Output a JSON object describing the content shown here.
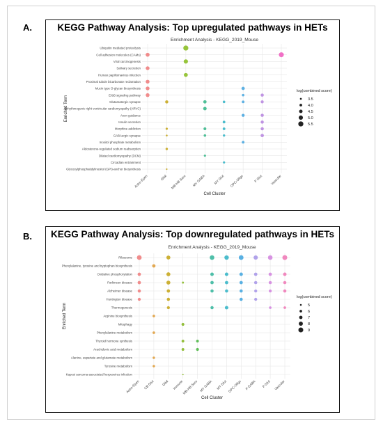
{
  "chart_data": [
    {
      "type": "scatter",
      "panel_label": "A.",
      "title": "KEGG Pathway Analysis: Top upregulated pathways in HETs",
      "subtitle": "Enrichment Analysis - KEGG_2019_Mouse",
      "xlabel": "Cell Cluster",
      "ylabel": "Enriched Term",
      "legend_title": "log(combined score)",
      "legend_values": [
        3.5,
        4.0,
        4.5,
        5.0,
        5.5
      ],
      "size_range": [
        3.2,
        5.8
      ],
      "grid": true,
      "legend_position": "right",
      "categories_x": [
        "Astro-Epen",
        "Glial",
        "MB-HB Sero",
        "MY GABA",
        "MY Glut",
        "OPC-Oligo",
        "P Glut",
        "Vascular"
      ],
      "colors": [
        "#f08080",
        "#c8a820",
        "#8cbf26",
        "#3cb88c",
        "#38b6c8",
        "#4ca9e0",
        "#b98ae0",
        "#f060c0"
      ],
      "categories_y": [
        "Ubiquitin mediated proteolysis",
        "Cell adhesion molecules (CAMs)",
        "Viral carcinogenesis",
        "Salivary secretion",
        "Human papillomavirus infection",
        "Proximal tubule bicarbonate reclamation",
        "Mucin type O-glycan biosynthesis",
        "ErbB signaling pathway",
        "Glutamatergic synapse",
        "Arrhythmogenic right ventricular cardiomyopathy (ARVC)",
        "Axon guidance",
        "Insulin secretion",
        "Morphine addiction",
        "GABAergic synapse",
        "Inositol phosphate metabolism",
        "Aldosterone-regulated sodium reabsorption",
        "Dilated cardiomyopathy (DCM)",
        "Circadian entrainment",
        "Glycosylphosphatidylinositol (GPI)-anchor biosynthesis"
      ],
      "points": [
        {
          "x": "MB-HB Sero",
          "y": "Ubiquitin mediated proteolysis",
          "size": 5.5
        },
        {
          "x": "Vascular",
          "y": "Cell adhesion molecules (CAMs)",
          "size": 5.4
        },
        {
          "x": "Astro-Epen",
          "y": "Cell adhesion molecules (CAMs)",
          "size": 4.8
        },
        {
          "x": "MB-HB Sero",
          "y": "Viral carcinogenesis",
          "size": 5.0
        },
        {
          "x": "Astro-Epen",
          "y": "Salivary secretion",
          "size": 4.7
        },
        {
          "x": "MB-HB Sero",
          "y": "Human papillomavirus infection",
          "size": 4.8
        },
        {
          "x": "Astro-Epen",
          "y": "Proximal tubule bicarbonate reclamation",
          "size": 4.7
        },
        {
          "x": "Astro-Epen",
          "y": "Mucin type O-glycan biosynthesis",
          "size": 4.7
        },
        {
          "x": "OPC-Oligo",
          "y": "Mucin type O-glycan biosynthesis",
          "size": 4.4
        },
        {
          "x": "Astro-Epen",
          "y": "ErbB signaling pathway",
          "size": 4.7
        },
        {
          "x": "OPC-Oligo",
          "y": "ErbB signaling pathway",
          "size": 3.9
        },
        {
          "x": "P Glut",
          "y": "ErbB signaling pathway",
          "size": 4.3
        },
        {
          "x": "Glial",
          "y": "Glutamatergic synapse",
          "size": 4.3
        },
        {
          "x": "MY GABA",
          "y": "Glutamatergic synapse",
          "size": 4.4
        },
        {
          "x": "MY Glut",
          "y": "Glutamatergic synapse",
          "size": 3.9
        },
        {
          "x": "OPC-Oligo",
          "y": "Glutamatergic synapse",
          "size": 4.0
        },
        {
          "x": "P Glut",
          "y": "Glutamatergic synapse",
          "size": 4.2
        },
        {
          "x": "MY GABA",
          "y": "Arrhythmogenic right ventricular cardiomyopathy (ARVC)",
          "size": 4.5
        },
        {
          "x": "OPC-Oligo",
          "y": "Axon guidance",
          "size": 4.2
        },
        {
          "x": "P Glut",
          "y": "Axon guidance",
          "size": 4.3
        },
        {
          "x": "MY Glut",
          "y": "Insulin secretion",
          "size": 4.0
        },
        {
          "x": "P Glut",
          "y": "Insulin secretion",
          "size": 4.3
        },
        {
          "x": "Glial",
          "y": "Morphine addiction",
          "size": 3.7
        },
        {
          "x": "MY GABA",
          "y": "Morphine addiction",
          "size": 4.1
        },
        {
          "x": "MY Glut",
          "y": "Morphine addiction",
          "size": 4.0
        },
        {
          "x": "P Glut",
          "y": "Morphine addiction",
          "size": 4.3
        },
        {
          "x": "Glial",
          "y": "GABAergic synapse",
          "size": 3.5
        },
        {
          "x": "MY GABA",
          "y": "GABAergic synapse",
          "size": 3.9
        },
        {
          "x": "MY Glut",
          "y": "GABAergic synapse",
          "size": 3.8
        },
        {
          "x": "P Glut",
          "y": "GABAergic synapse",
          "size": 4.4
        },
        {
          "x": "OPC-Oligo",
          "y": "Inositol phosphate metabolism",
          "size": 4.0
        },
        {
          "x": "Glial",
          "y": "Aldosterone-regulated sodium reabsorption",
          "size": 3.8
        },
        {
          "x": "MY GABA",
          "y": "Dilated cardiomyopathy (DCM)",
          "size": 3.7
        },
        {
          "x": "MY Glut",
          "y": "Circadian entrainment",
          "size": 3.7
        },
        {
          "x": "Glial",
          "y": "Glycosylphosphatidylinositol (GPI)-anchor biosynthesis",
          "size": 3.3
        }
      ]
    },
    {
      "type": "scatter",
      "panel_label": "B.",
      "title": "KEGG Pathway Analysis: Top downregulated pathways in HETs",
      "subtitle": "Enrichment Analysis - KEGG_2019_Mouse",
      "xlabel": "Cell Cluster",
      "ylabel": "Enriched Term",
      "legend_title": "log(combined score)",
      "legend_values": [
        5,
        6,
        7,
        8,
        9
      ],
      "size_range": [
        4.5,
        9.5
      ],
      "grid": true,
      "legend_position": "right",
      "categories_x": [
        "Astro-Epen",
        "CB Glut",
        "Glial",
        "Immune",
        "MB-HB Sero",
        "MY GABA",
        "MY Glut",
        "OPC-Oligo",
        "P GABA",
        "P Glut",
        "Vascular"
      ],
      "colors": [
        "#f08080",
        "#e0a040",
        "#c8a820",
        "#88b828",
        "#50b848",
        "#3cb8a0",
        "#38b6c8",
        "#48a8e0",
        "#a898e8",
        "#d488e0",
        "#f07cb8"
      ],
      "categories_y": [
        "Ribosome",
        "Phenylalanine, tyrosine and tryptophan biosynthesis",
        "Oxidative phosphorylation",
        "Parkinson disease",
        "Alzheimer disease",
        "Huntington disease",
        "Thermogenesis",
        "Arginine biosynthesis",
        "Mitophagy",
        "Phenylalanine metabolism",
        "Thyroid hormone synthesis",
        "Arachidonic acid metabolism",
        "Alanine, aspartate and glutamate metabolism",
        "Tyrosine metabolism",
        "Kaposi sarcoma-associated herpesvirus infection"
      ],
      "points": [
        {
          "x": "Astro-Epen",
          "y": "Ribosome",
          "size": 8.8
        },
        {
          "x": "Glial",
          "y": "Ribosome",
          "size": 7.8
        },
        {
          "x": "MY GABA",
          "y": "Ribosome",
          "size": 8.6
        },
        {
          "x": "MY Glut",
          "y": "Ribosome",
          "size": 8.4
        },
        {
          "x": "OPC-Oligo",
          "y": "Ribosome",
          "size": 8.8
        },
        {
          "x": "P GABA",
          "y": "Ribosome",
          "size": 8.2
        },
        {
          "x": "P Glut",
          "y": "Ribosome",
          "size": 8.6
        },
        {
          "x": "Vascular",
          "y": "Ribosome",
          "size": 9.0
        },
        {
          "x": "CB Glut",
          "y": "Phenylalanine, tyrosine and tryptophan biosynthesis",
          "size": 7.0
        },
        {
          "x": "Astro-Epen",
          "y": "Oxidative phosphorylation",
          "size": 7.0
        },
        {
          "x": "Glial",
          "y": "Oxidative phosphorylation",
          "size": 7.8
        },
        {
          "x": "MY GABA",
          "y": "Oxidative phosphorylation",
          "size": 7.2
        },
        {
          "x": "MY Glut",
          "y": "Oxidative phosphorylation",
          "size": 7.2
        },
        {
          "x": "OPC-Oligo",
          "y": "Oxidative phosphorylation",
          "size": 7.2
        },
        {
          "x": "P GABA",
          "y": "Oxidative phosphorylation",
          "size": 7.0
        },
        {
          "x": "P Glut",
          "y": "Oxidative phosphorylation",
          "size": 7.0
        },
        {
          "x": "Vascular",
          "y": "Oxidative phosphorylation",
          "size": 7.2
        },
        {
          "x": "Astro-Epen",
          "y": "Parkinson disease",
          "size": 7.0
        },
        {
          "x": "Glial",
          "y": "Parkinson disease",
          "size": 7.8
        },
        {
          "x": "Immune",
          "y": "Parkinson disease",
          "size": 5.3
        },
        {
          "x": "MY GABA",
          "y": "Parkinson disease",
          "size": 7.0
        },
        {
          "x": "MY Glut",
          "y": "Parkinson disease",
          "size": 7.0
        },
        {
          "x": "OPC-Oligo",
          "y": "Parkinson disease",
          "size": 7.0
        },
        {
          "x": "P GABA",
          "y": "Parkinson disease",
          "size": 6.8
        },
        {
          "x": "P Glut",
          "y": "Parkinson disease",
          "size": 6.8
        },
        {
          "x": "Vascular",
          "y": "Parkinson disease",
          "size": 6.8
        },
        {
          "x": "Astro-Epen",
          "y": "Alzheimer disease",
          "size": 6.8
        },
        {
          "x": "Glial",
          "y": "Alzheimer disease",
          "size": 7.0
        },
        {
          "x": "MY GABA",
          "y": "Alzheimer disease",
          "size": 6.8
        },
        {
          "x": "MY Glut",
          "y": "Alzheimer disease",
          "size": 6.8
        },
        {
          "x": "OPC-Oligo",
          "y": "Alzheimer disease",
          "size": 6.8
        },
        {
          "x": "P GABA",
          "y": "Alzheimer disease",
          "size": 6.6
        },
        {
          "x": "P Glut",
          "y": "Alzheimer disease",
          "size": 6.6
        },
        {
          "x": "Vascular",
          "y": "Alzheimer disease",
          "size": 6.8
        },
        {
          "x": "Astro-Epen",
          "y": "Huntington disease",
          "size": 6.6
        },
        {
          "x": "Glial",
          "y": "Huntington disease",
          "size": 6.8
        },
        {
          "x": "OPC-Oligo",
          "y": "Huntington disease",
          "size": 6.8
        },
        {
          "x": "P GABA",
          "y": "Huntington disease",
          "size": 6.6
        },
        {
          "x": "Glial",
          "y": "Thermogenesis",
          "size": 6.6
        },
        {
          "x": "MY GABA",
          "y": "Thermogenesis",
          "size": 6.8
        },
        {
          "x": "MY Glut",
          "y": "Thermogenesis",
          "size": 7.2
        },
        {
          "x": "P Glut",
          "y": "Thermogenesis",
          "size": 6.0
        },
        {
          "x": "Vascular",
          "y": "Thermogenesis",
          "size": 6.0
        },
        {
          "x": "CB Glut",
          "y": "Arginine biosynthesis",
          "size": 6.0
        },
        {
          "x": "Immune",
          "y": "Mitophagy",
          "size": 6.4
        },
        {
          "x": "CB Glut",
          "y": "Phenylalanine metabolism",
          "size": 6.0
        },
        {
          "x": "Immune",
          "y": "Thyroid hormone synthesis",
          "size": 6.2
        },
        {
          "x": "MB-HB Sero",
          "y": "Thyroid hormone synthesis",
          "size": 6.2
        },
        {
          "x": "Immune",
          "y": "Arachidonic acid metabolism",
          "size": 6.2
        },
        {
          "x": "MB-HB Sero",
          "y": "Arachidonic acid metabolism",
          "size": 6.4
        },
        {
          "x": "CB Glut",
          "y": "Alanine, aspartate and glutamate metabolism",
          "size": 5.8
        },
        {
          "x": "CB Glut",
          "y": "Tyrosine metabolism",
          "size": 5.8
        },
        {
          "x": "Immune",
          "y": "Kaposi sarcoma-associated herpesvirus infection",
          "size": 4.6
        }
      ]
    }
  ]
}
